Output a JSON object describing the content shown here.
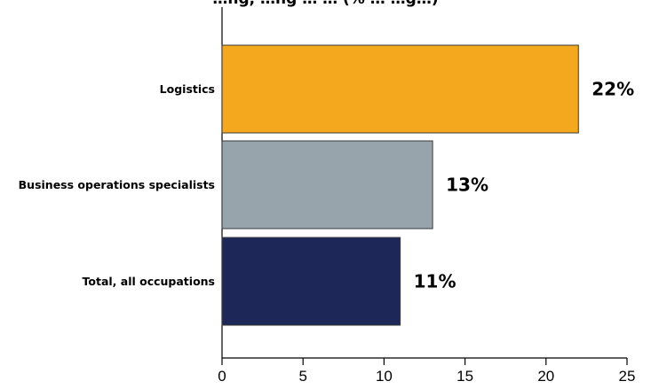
{
  "title": "…ng, …ng …  … (% …   …g…)",
  "chart_data": {
    "type": "bar",
    "orientation": "horizontal",
    "categories": [
      "Logistics",
      "Business operations specialists",
      "Total, all occupations"
    ],
    "values": [
      22,
      13,
      11
    ],
    "data_labels": [
      "22%",
      "13%",
      "11%"
    ],
    "colors": [
      "#F4A81D",
      "#97A4AC",
      "#1D2859"
    ],
    "xlim": [
      0,
      25
    ],
    "xticks": [
      0,
      5,
      10,
      15,
      20,
      25
    ],
    "grid": false,
    "legend": "none"
  }
}
